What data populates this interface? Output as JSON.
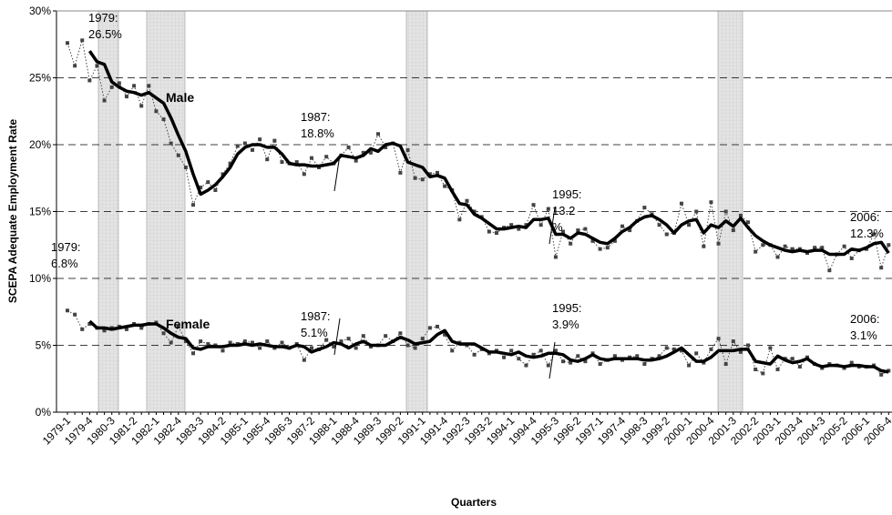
{
  "chart_data": {
    "type": "line",
    "y_label": "SCEPA Adequate Employment Rate",
    "x_label": "Quarters",
    "categories": [
      "1979-1",
      null,
      null,
      "1979-4",
      null,
      null,
      "1980-3",
      null,
      null,
      "1981-2",
      null,
      null,
      "1982-1",
      null,
      null,
      "1982-4",
      null,
      null,
      "1983-3",
      null,
      null,
      "1984-2",
      null,
      null,
      "1985-1",
      null,
      null,
      "1985-4",
      null,
      null,
      "1986-3",
      null,
      null,
      "1987-2",
      null,
      null,
      "1988-1",
      null,
      null,
      "1988-4",
      null,
      null,
      "1989-3",
      null,
      null,
      "1990-2",
      null,
      null,
      "1991-1",
      null,
      null,
      "1991-4",
      null,
      null,
      "1992-3",
      null,
      null,
      "1993-2",
      null,
      null,
      "1994-1",
      null,
      null,
      "1994-4",
      null,
      null,
      "1995-3",
      null,
      null,
      "1996-2",
      null,
      null,
      "1997-1",
      null,
      null,
      "1997-4",
      null,
      null,
      "1998-3",
      null,
      null,
      "1999-2",
      null,
      null,
      "2000-1",
      null,
      null,
      "2000-4",
      null,
      null,
      "2001-3",
      null,
      null,
      "2002-2",
      null,
      null,
      "2003-1",
      null,
      null,
      "2003-4",
      null,
      null,
      "2004-3",
      null,
      null,
      "2005-2",
      null,
      null,
      "2006-1",
      null,
      null,
      "2006-4"
    ],
    "ylim": [
      0,
      30
    ],
    "yticks": [
      {
        "value": 0,
        "label": "0%"
      },
      {
        "value": 5,
        "label": "5%"
      },
      {
        "value": 10,
        "label": "10%"
      },
      {
        "value": 15,
        "label": "15%"
      },
      {
        "value": 20,
        "label": "20%"
      },
      {
        "value": 25,
        "label": "25%"
      },
      {
        "value": 30,
        "label": "30%"
      }
    ],
    "grid": true,
    "series": [
      {
        "color": "#444444",
        "style": "dotted",
        "markers": true,
        "values": [
          27.6,
          25.9,
          27.8,
          24.8,
          25.9,
          23.3,
          24.3,
          24.6,
          23.6,
          24.4,
          22.9,
          24.4,
          22.5,
          21.9,
          20.1,
          19.2,
          18.3,
          15.5,
          16.8,
          17.2,
          16.6,
          17.8,
          18.6,
          19.9,
          20.1,
          19.6,
          20.4,
          18.9,
          20.3,
          18.7,
          18.6,
          18.7,
          17.8,
          19.0,
          18.3,
          19.1,
          18.6,
          19.2,
          19.8,
          18.8,
          19.4,
          19.4,
          20.8,
          19.8,
          20.1,
          17.9,
          19.6,
          17.5,
          17.4,
          17.8,
          17.9,
          16.9,
          16.6,
          14.4,
          15.8,
          15.0,
          14.6,
          13.5,
          13.4,
          13.8,
          14.0,
          13.7,
          14.0,
          15.5,
          14.0,
          15.2,
          11.6,
          13.5,
          12.6,
          13.6,
          13.7,
          12.8,
          12.2,
          12.3,
          12.8,
          13.9,
          13.6,
          14.3,
          15.3,
          14.8,
          14.0,
          13.3,
          13.4,
          15.6,
          14.0,
          15.0,
          12.4,
          15.7,
          12.6,
          15.0,
          13.6,
          14.7,
          14.2,
          12.0,
          12.5,
          12.5,
          11.6,
          12.4,
          12.2,
          12.2,
          11.9,
          12.3,
          12.3,
          10.6,
          11.8,
          12.4,
          11.5,
          12.1,
          12.2,
          13.3,
          10.8,
          12.5
        ]
      },
      {
        "color": "#000000",
        "style": "thick",
        "markers": false,
        "values": [
          null,
          null,
          null,
          27.0,
          26.2,
          26.0,
          24.7,
          24.3,
          24.0,
          23.9,
          23.7,
          23.9,
          23.5,
          23.1,
          22.0,
          20.7,
          19.5,
          17.8,
          16.3,
          16.6,
          17.0,
          17.6,
          18.3,
          19.3,
          19.8,
          20.0,
          20.0,
          19.8,
          19.8,
          19.3,
          18.6,
          18.5,
          18.5,
          18.4,
          18.4,
          18.5,
          18.6,
          19.2,
          19.1,
          19.0,
          19.2,
          19.7,
          19.5,
          20.0,
          20.1,
          19.9,
          18.7,
          18.5,
          18.3,
          17.6,
          17.7,
          17.5,
          16.5,
          15.6,
          15.5,
          14.8,
          14.5,
          14.1,
          13.7,
          13.7,
          13.8,
          13.9,
          13.8,
          14.4,
          14.4,
          14.5,
          13.3,
          13.3,
          13.0,
          13.4,
          13.3,
          13.0,
          12.7,
          12.6,
          13.0,
          13.5,
          13.8,
          14.3,
          14.6,
          14.7,
          14.4,
          14.0,
          13.4,
          14.0,
          14.3,
          14.4,
          13.4,
          14.0,
          13.8,
          14.3,
          13.9,
          14.5,
          13.8,
          13.2,
          12.8,
          12.5,
          12.3,
          12.1,
          12.0,
          12.1,
          12.0,
          12.1,
          12.1,
          11.8,
          11.8,
          11.8,
          12.2,
          12.1,
          12.3,
          12.6,
          12.7,
          11.9
        ]
      },
      {
        "color": "#444444",
        "style": "dotted",
        "markers": true,
        "values": [
          7.6,
          7.3,
          6.2,
          6.6,
          6.3,
          6.1,
          6.3,
          6.4,
          6.2,
          6.6,
          6.3,
          6.6,
          6.7,
          5.9,
          5.2,
          6.4,
          5.3,
          4.4,
          5.3,
          5.1,
          5.0,
          4.6,
          5.2,
          5.1,
          5.3,
          5.2,
          4.8,
          5.3,
          4.8,
          5.2,
          4.8,
          5.1,
          3.9,
          4.8,
          4.7,
          5.4,
          4.9,
          5.3,
          5.5,
          4.8,
          5.7,
          4.9,
          5.0,
          5.7,
          5.3,
          5.9,
          5.0,
          4.8,
          5.5,
          6.3,
          6.4,
          5.8,
          4.6,
          5.2,
          5.0,
          4.3,
          4.7,
          4.4,
          4.6,
          4.1,
          4.6,
          4.0,
          3.5,
          4.3,
          4.6,
          3.5,
          4.6,
          3.8,
          3.7,
          4.2,
          3.8,
          4.4,
          3.6,
          3.9,
          4.2,
          3.9,
          4.1,
          4.2,
          3.6,
          4.0,
          4.2,
          4.8,
          4.7,
          4.6,
          3.5,
          4.4,
          3.7,
          4.7,
          5.5,
          3.6,
          5.3,
          4.5,
          5.0,
          3.2,
          2.9,
          4.8,
          3.2,
          4.0,
          4.0,
          3.4,
          4.1,
          3.6,
          3.3,
          3.6,
          3.5,
          3.3,
          3.7,
          3.4,
          3.4,
          3.5,
          2.8,
          3.1
        ]
      },
      {
        "color": "#000000",
        "style": "thick",
        "markers": false,
        "values": [
          null,
          null,
          null,
          6.8,
          6.3,
          6.3,
          6.2,
          6.3,
          6.4,
          6.5,
          6.5,
          6.6,
          6.6,
          6.3,
          5.9,
          5.6,
          5.5,
          4.8,
          4.7,
          4.9,
          4.9,
          4.9,
          5.0,
          5.0,
          5.1,
          5.0,
          5.1,
          5.0,
          4.9,
          4.9,
          4.8,
          5.0,
          4.9,
          4.5,
          4.7,
          4.9,
          5.2,
          5.1,
          4.8,
          5.1,
          5.3,
          5.0,
          5.0,
          5.0,
          5.3,
          5.6,
          5.4,
          5.1,
          5.2,
          5.3,
          5.8,
          6.1,
          5.3,
          5.1,
          5.1,
          5.1,
          4.8,
          4.5,
          4.5,
          4.4,
          4.3,
          4.5,
          4.2,
          4.1,
          4.2,
          4.4,
          4.4,
          4.3,
          3.9,
          3.8,
          4.0,
          4.3,
          4.0,
          3.9,
          4.0,
          4.0,
          4.0,
          4.0,
          3.9,
          3.9,
          4.0,
          4.2,
          4.5,
          4.8,
          4.3,
          3.8,
          3.8,
          4.1,
          4.6,
          4.6,
          4.6,
          4.7,
          4.7,
          3.8,
          3.7,
          3.6,
          4.2,
          3.9,
          3.7,
          3.8,
          4.0,
          3.6,
          3.4,
          3.5,
          3.5,
          3.4,
          3.5,
          3.5,
          3.4,
          3.4,
          3.1,
          3.0
        ]
      }
    ],
    "series_labels": [
      "Male",
      "Female"
    ],
    "annotations": [
      [
        "1979:",
        "26.5%"
      ],
      [
        "1987:",
        "18.8%"
      ],
      [
        "1995:",
        "13.2",
        "%"
      ],
      [
        "2006:",
        "12.3%"
      ],
      [
        "1979:",
        "6.8%"
      ],
      [
        "1987:",
        "5.1%"
      ],
      [
        "1995:",
        "3.9%"
      ],
      [
        "2006:",
        "3.1%"
      ]
    ]
  }
}
